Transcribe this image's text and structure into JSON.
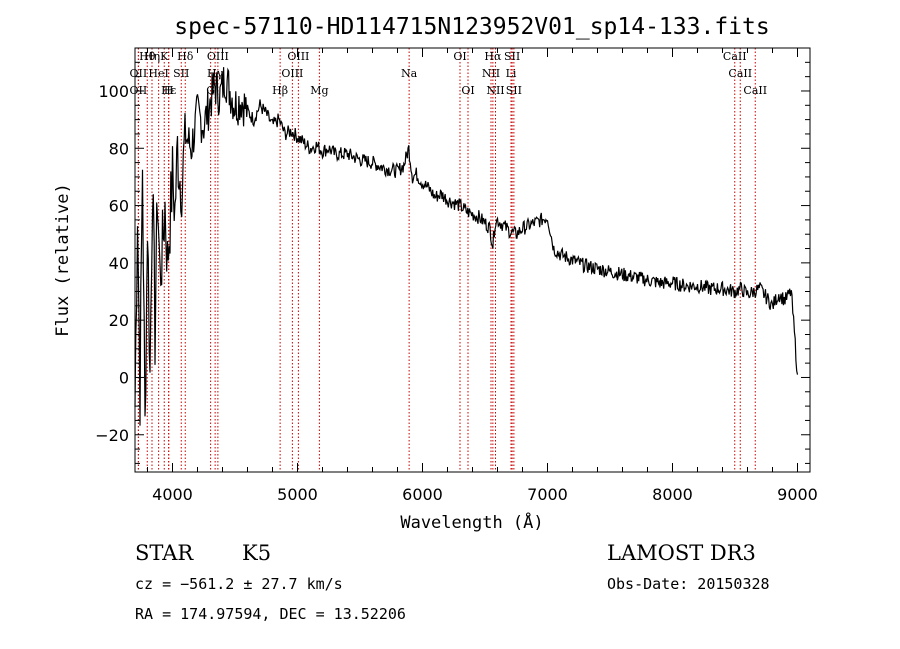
{
  "chart_data": {
    "type": "line",
    "title": "spec-57110-HD114715N123952V01_sp14-133.fits",
    "xlabel": "Wavelength (Å)",
    "ylabel": "Flux (relative)",
    "xlim": [
      3700,
      9100
    ],
    "ylim": [
      -33,
      115
    ],
    "xticks": [
      4000,
      5000,
      6000,
      7000,
      8000,
      9000
    ],
    "xtick_labels": [
      "4000",
      "5000",
      "6000",
      "7000",
      "8000",
      "9000"
    ],
    "yticks": [
      -20,
      0,
      20,
      40,
      60,
      80,
      100
    ],
    "ytick_labels": [
      "−20",
      "0",
      "20",
      "40",
      "60",
      "80",
      "100"
    ],
    "series": [
      {
        "name": "flux",
        "x": [
          3700,
          3720,
          3740,
          3760,
          3780,
          3800,
          3820,
          3840,
          3860,
          3880,
          3900,
          3920,
          3940,
          3960,
          3980,
          4000,
          4020,
          4040,
          4060,
          4080,
          4100,
          4150,
          4200,
          4250,
          4300,
          4340,
          4380,
          4420,
          4460,
          4500,
          4550,
          4600,
          4650,
          4700,
          4750,
          4800,
          4850,
          4900,
          4950,
          5000,
          5050,
          5100,
          5150,
          5200,
          5250,
          5300,
          5400,
          5500,
          5600,
          5700,
          5800,
          5850,
          5890,
          5920,
          5950,
          6000,
          6050,
          6100,
          6150,
          6200,
          6250,
          6300,
          6350,
          6400,
          6450,
          6500,
          6540,
          6563,
          6580,
          6600,
          6650,
          6700,
          6750,
          6800,
          6850,
          6900,
          6950,
          7000,
          7050,
          7100,
          7150,
          7200,
          7300,
          7400,
          7500,
          7600,
          7700,
          7800,
          7900,
          8000,
          8100,
          8200,
          8300,
          8400,
          8500,
          8550,
          8600,
          8650,
          8700,
          8750,
          8800,
          8850,
          8900,
          8950,
          9000
        ],
        "y": [
          -10,
          60,
          -5,
          75,
          -18,
          55,
          0,
          70,
          15,
          65,
          35,
          45,
          60,
          40,
          55,
          70,
          58,
          80,
          70,
          68,
          85,
          80,
          92,
          88,
          96,
          102,
          98,
          105,
          100,
          95,
          97,
          93,
          90,
          95,
          92,
          88,
          90,
          85,
          86,
          84,
          82,
          80,
          81,
          79,
          80,
          78,
          78,
          76,
          75,
          73,
          72,
          74,
          80,
          70,
          71,
          68,
          66,
          63,
          64,
          62,
          61,
          60,
          58,
          57,
          56,
          54,
          52,
          46,
          54,
          55,
          53,
          51,
          50,
          52,
          53,
          54,
          55,
          56,
          45,
          43,
          42,
          41,
          39,
          38,
          37,
          36,
          35,
          34,
          33,
          33,
          32,
          32,
          31,
          31,
          30,
          31,
          29,
          30,
          31,
          28,
          25,
          29,
          27,
          30,
          1
        ]
      }
    ],
    "spectral_lines": [
      {
        "label": "Hθ",
        "wavelength": 3798,
        "row": 0
      },
      {
        "label": "Hη",
        "wavelength": 3836,
        "row": 0
      },
      {
        "label": "OII",
        "wavelength": 3727,
        "row": 1
      },
      {
        "label": "HeI",
        "wavelength": 3889,
        "row": 1
      },
      {
        "label": "OII",
        "wavelength": 3727,
        "row": 2
      },
      {
        "label": "Hε",
        "wavelength": 3970,
        "row": 2
      },
      {
        "label": "K",
        "wavelength": 3934,
        "row": 0
      },
      {
        "label": "SII",
        "wavelength": 4070,
        "row": 1
      },
      {
        "label": "H",
        "wavelength": 3969,
        "row": 2
      },
      {
        "label": "Hδ",
        "wavelength": 4102,
        "row": 0
      },
      {
        "label": "G",
        "wavelength": 4305,
        "row": 2
      },
      {
        "label": "Hγ",
        "wavelength": 4341,
        "row": 1
      },
      {
        "label": "OIII",
        "wavelength": 4363,
        "row": 0
      },
      {
        "label": "Hβ",
        "wavelength": 4861,
        "row": 2
      },
      {
        "label": "OIII",
        "wavelength": 4959,
        "row": 1
      },
      {
        "label": "OIII",
        "wavelength": 5007,
        "row": 0
      },
      {
        "label": "Mg",
        "wavelength": 5175,
        "row": 2
      },
      {
        "label": "Na",
        "wavelength": 5893,
        "row": 1
      },
      {
        "label": "OI",
        "wavelength": 6300,
        "row": 0
      },
      {
        "label": "OI",
        "wavelength": 6364,
        "row": 2
      },
      {
        "label": "NII",
        "wavelength": 6548,
        "row": 1
      },
      {
        "label": "Hα",
        "wavelength": 6563,
        "row": 0
      },
      {
        "label": "NII",
        "wavelength": 6584,
        "row": 2
      },
      {
        "label": "SII",
        "wavelength": 6717,
        "row": 0
      },
      {
        "label": "Li",
        "wavelength": 6708,
        "row": 1
      },
      {
        "label": "SII",
        "wavelength": 6731,
        "row": 2
      },
      {
        "label": "CaII",
        "wavelength": 8498,
        "row": 0
      },
      {
        "label": "CaII",
        "wavelength": 8542,
        "row": 1
      },
      {
        "label": "CaII",
        "wavelength": 8662,
        "row": 2
      }
    ]
  },
  "info": {
    "class": "STAR",
    "subclass": "K5",
    "survey": "LAMOST DR3",
    "cz": "cz = −561.2 ± 27.7 km/s",
    "obs_date": "Obs-Date: 20150328",
    "coords": "RA = 174.97594, DEC =  13.52206"
  },
  "colors": {
    "spectrum": "#000000",
    "line_markers": "#cc0000",
    "axes": "#000000"
  }
}
